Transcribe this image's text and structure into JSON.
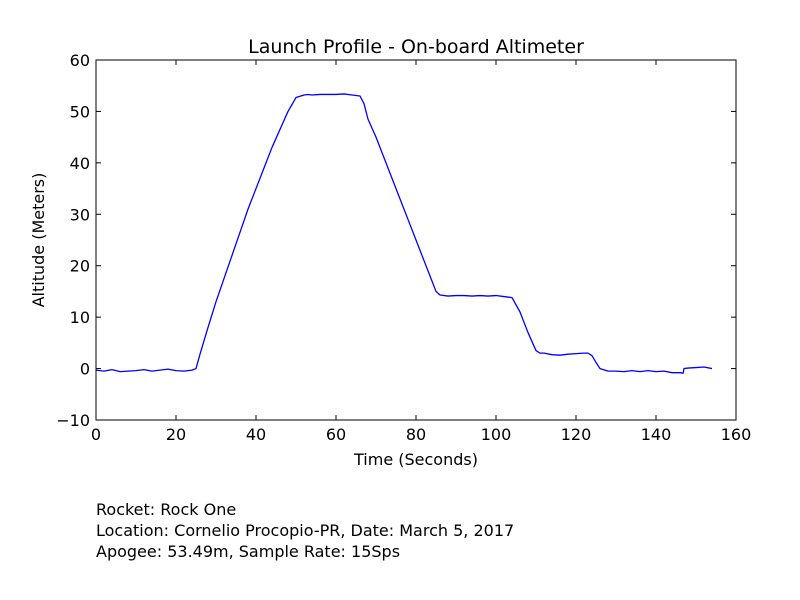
{
  "chart_data": {
    "type": "line",
    "title": "Launch Profile - On-board Altimeter",
    "xlabel": "Time (Seconds)",
    "ylabel": "Altitude (Meters)",
    "xlim": [
      0,
      160
    ],
    "ylim": [
      -10,
      60
    ],
    "xticks": [
      0,
      20,
      40,
      60,
      80,
      100,
      120,
      140,
      160
    ],
    "yticks": [
      -10,
      0,
      10,
      20,
      30,
      40,
      50,
      60
    ],
    "xtick_labels": [
      "0",
      "20",
      "40",
      "60",
      "80",
      "100",
      "120",
      "140",
      "160"
    ],
    "ytick_labels": [
      "−10",
      "0",
      "10",
      "20",
      "30",
      "40",
      "50",
      "60"
    ],
    "grid": false,
    "legend": "none",
    "series": [
      {
        "color": "#0000ff",
        "x": [
          0,
          2,
          4,
          6,
          8,
          10,
          12,
          14,
          16,
          18,
          20,
          22,
          24,
          25,
          26,
          28,
          30,
          32,
          34,
          36,
          38,
          40,
          42,
          44,
          46,
          48,
          50,
          52,
          53,
          54,
          56,
          58,
          60,
          62,
          64,
          66,
          67,
          68,
          70,
          72,
          74,
          76,
          78,
          80,
          82,
          84,
          85,
          86,
          88,
          90,
          92,
          94,
          96,
          98,
          100,
          102,
          104,
          106,
          108,
          110,
          111,
          112,
          114,
          116,
          118,
          120,
          122,
          123,
          124,
          125,
          126,
          128,
          130,
          132,
          134,
          136,
          138,
          140,
          142,
          144,
          146,
          146.8,
          147,
          148,
          150,
          152,
          154
        ],
        "y": [
          -0.3,
          -0.5,
          -0.2,
          -0.6,
          -0.5,
          -0.4,
          -0.2,
          -0.5,
          -0.3,
          -0.1,
          -0.4,
          -0.5,
          -0.3,
          0.0,
          2.8,
          8.0,
          13.0,
          17.5,
          22.0,
          26.5,
          31.0,
          35.0,
          39.0,
          43.0,
          46.5,
          50.0,
          52.7,
          53.2,
          53.3,
          53.2,
          53.3,
          53.3,
          53.3,
          53.4,
          53.2,
          53.0,
          51.5,
          48.5,
          45.0,
          41.0,
          37.0,
          33.0,
          29.0,
          25.0,
          21.0,
          17.0,
          15.0,
          14.3,
          14.1,
          14.2,
          14.2,
          14.1,
          14.2,
          14.1,
          14.2,
          14.0,
          13.8,
          11.0,
          7.0,
          3.5,
          3.0,
          3.0,
          2.7,
          2.6,
          2.8,
          2.9,
          3.0,
          3.0,
          2.5,
          1.2,
          0.0,
          -0.5,
          -0.5,
          -0.6,
          -0.4,
          -0.6,
          -0.4,
          -0.6,
          -0.5,
          -0.8,
          -0.8,
          -0.9,
          0.0,
          0.1,
          0.2,
          0.3,
          0.0
        ]
      }
    ]
  },
  "info": {
    "rocket": "Rocket: Rock One",
    "location_date": "Location: Cornelio Procopio-PR, Date: March 5, 2017",
    "apogee_rate": "Apogee: 53.49m, Sample Rate: 15Sps"
  }
}
